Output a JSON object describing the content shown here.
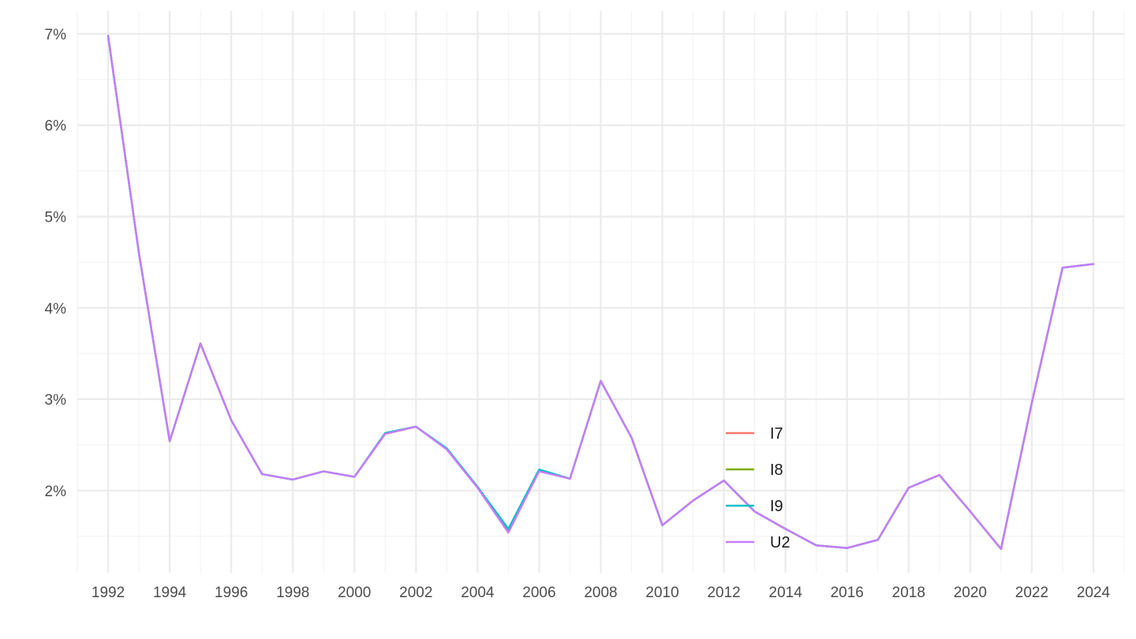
{
  "chart_data": {
    "type": "line",
    "title": "",
    "xlabel": "",
    "ylabel": "",
    "x": [
      1992,
      1993,
      1994,
      1995,
      1996,
      1997,
      1998,
      1999,
      2000,
      2001,
      2002,
      2003,
      2004,
      2005,
      2006,
      2007,
      2008,
      2009,
      2010,
      2011,
      2012,
      2013,
      2014,
      2015,
      2016,
      2017,
      2018,
      2019,
      2020,
      2021,
      2022,
      2023,
      2024
    ],
    "xlim": [
      1991,
      2025
    ],
    "ylim": [
      1.1,
      7.25
    ],
    "x_ticks": [
      "1992",
      "1994",
      "1996",
      "1998",
      "2000",
      "2002",
      "2004",
      "2006",
      "2008",
      "2010",
      "2012",
      "2014",
      "2016",
      "2018",
      "2020",
      "2022",
      "2024"
    ],
    "y_ticks": [
      "2%",
      "3%",
      "4%",
      "5%",
      "6%",
      "7%"
    ],
    "y_tick_values": [
      2,
      3,
      4,
      5,
      6,
      7
    ],
    "grid": true,
    "legend_position": "bottom-center",
    "series": [
      {
        "name": "I7",
        "color": "#F8766D",
        "values": [
          6.98,
          4.6,
          2.54,
          3.61,
          2.77,
          2.18,
          2.12,
          2.21,
          2.15,
          2.62,
          2.7,
          2.45,
          2.03,
          1.54,
          2.22,
          2.13,
          3.2,
          2.58,
          1.62,
          1.89,
          2.11,
          1.77,
          1.58,
          1.4,
          1.37,
          1.46,
          2.03,
          2.17,
          1.77,
          1.36,
          2.96,
          4.44,
          4.48
        ]
      },
      {
        "name": "I8",
        "color": "#7CAE00",
        "values": [
          6.98,
          4.6,
          2.54,
          3.61,
          2.77,
          2.18,
          2.12,
          2.21,
          2.15,
          2.63,
          2.7,
          2.46,
          2.04,
          1.56,
          2.22,
          2.13,
          3.2,
          2.58,
          1.62,
          1.89,
          2.11,
          1.77,
          1.58,
          1.4,
          1.37,
          1.46,
          2.03,
          2.17,
          1.77,
          1.36,
          2.96,
          4.44,
          4.48
        ]
      },
      {
        "name": "I9",
        "color": "#00BFC4",
        "values": [
          6.98,
          4.6,
          2.54,
          3.61,
          2.77,
          2.18,
          2.12,
          2.21,
          2.15,
          2.63,
          2.7,
          2.46,
          2.04,
          1.58,
          2.23,
          2.13,
          3.2,
          2.58,
          1.62,
          1.89,
          2.11,
          1.77,
          1.58,
          1.4,
          1.37,
          1.46,
          2.03,
          2.17,
          1.77,
          1.36,
          2.96,
          4.44,
          4.48
        ]
      },
      {
        "name": "U2",
        "color": "#C77CFF",
        "values": [
          6.98,
          4.6,
          2.54,
          3.61,
          2.77,
          2.18,
          2.12,
          2.21,
          2.15,
          2.62,
          2.7,
          2.45,
          2.03,
          1.54,
          2.21,
          2.13,
          3.2,
          2.58,
          1.62,
          1.89,
          2.11,
          1.77,
          1.58,
          1.4,
          1.37,
          1.46,
          2.03,
          2.17,
          1.77,
          1.36,
          2.96,
          4.44,
          4.48
        ]
      }
    ]
  }
}
